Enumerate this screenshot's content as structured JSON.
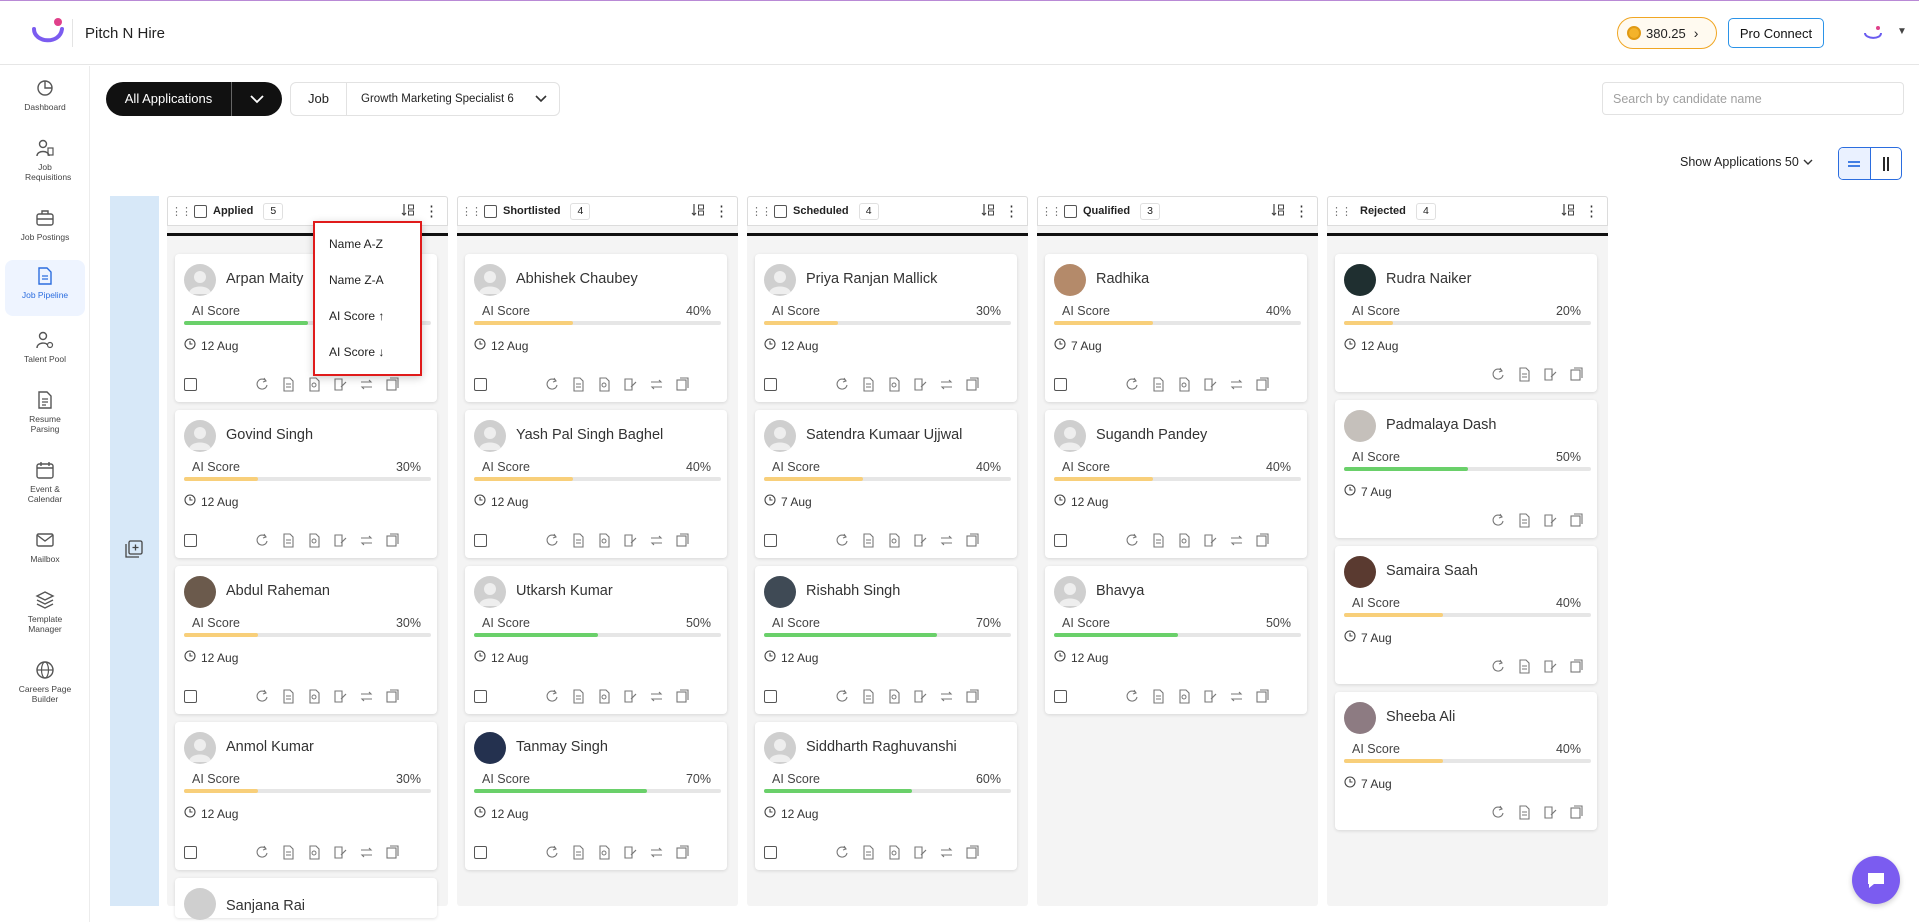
{
  "header": {
    "app_title": "Pitch N Hire",
    "coins": "380.25",
    "pro_connect": "Pro Connect"
  },
  "sidebar": {
    "items": [
      {
        "label": "Dashboard"
      },
      {
        "label": "Job Requisitions"
      },
      {
        "label": "Job Postings"
      },
      {
        "label": "Job Pipeline"
      },
      {
        "label": "Talent Pool"
      },
      {
        "label": "Resume Parsing"
      },
      {
        "label": "Event & Calendar"
      },
      {
        "label": "Mailbox"
      },
      {
        "label": "Template Manager"
      },
      {
        "label": "Careers Page Builder"
      }
    ]
  },
  "toolbar": {
    "all_applications": "All Applications",
    "job_label": "Job",
    "job_value": "Growth Marketing Specialist 6",
    "search_placeholder": "Search by candidate name",
    "show_applications": "Show Applications 50"
  },
  "columns": [
    {
      "title": "Applied",
      "count": "5"
    },
    {
      "title": "Shortlisted",
      "count": "4"
    },
    {
      "title": "Scheduled",
      "count": "4"
    },
    {
      "title": "Qualified",
      "count": "3"
    },
    {
      "title": "Rejected",
      "count": "4"
    }
  ],
  "score_label": "AI Score",
  "sort_menu": [
    "Name A-Z",
    "Name Z-A",
    "AI Score ↑",
    "AI Score ↓"
  ],
  "cards": {
    "applied": [
      {
        "name": "Arpan Maity",
        "score": "",
        "pct": 50,
        "date": "12 Aug"
      },
      {
        "name": "Govind Singh",
        "score": "30%",
        "pct": 30,
        "date": "12 Aug"
      },
      {
        "name": "Abdul Raheman",
        "score": "30%",
        "pct": 30,
        "date": "12 Aug"
      },
      {
        "name": "Anmol Kumar",
        "score": "30%",
        "pct": 30,
        "date": "12 Aug"
      }
    ],
    "applied_partial": "Sanjana Rai",
    "shortlisted": [
      {
        "name": "Abhishek Chaubey",
        "score": "40%",
        "pct": 40,
        "date": "12 Aug"
      },
      {
        "name": "Yash Pal Singh Baghel",
        "score": "40%",
        "pct": 40,
        "date": "12 Aug"
      },
      {
        "name": "Utkarsh Kumar",
        "score": "50%",
        "pct": 50,
        "date": "12 Aug"
      },
      {
        "name": "Tanmay Singh",
        "score": "70%",
        "pct": 70,
        "date": "12 Aug"
      }
    ],
    "scheduled": [
      {
        "name": "Priya Ranjan Mallick",
        "score": "30%",
        "pct": 30,
        "date": "12 Aug"
      },
      {
        "name": "Satendra Kumaar Ujjwal",
        "score": "40%",
        "pct": 40,
        "date": "7 Aug"
      },
      {
        "name": "Rishabh Singh",
        "score": "70%",
        "pct": 70,
        "date": "12 Aug"
      },
      {
        "name": "Siddharth Raghuvanshi",
        "score": "60%",
        "pct": 60,
        "date": "12 Aug"
      }
    ],
    "qualified": [
      {
        "name": "Radhika",
        "score": "40%",
        "pct": 40,
        "date": "7 Aug"
      },
      {
        "name": "Sugandh Pandey",
        "score": "40%",
        "pct": 40,
        "date": "12 Aug"
      },
      {
        "name": "Bhavya",
        "score": "50%",
        "pct": 50,
        "date": "12 Aug"
      }
    ],
    "rejected": [
      {
        "name": "Rudra Naiker",
        "score": "20%",
        "pct": 20,
        "date": "12 Aug"
      },
      {
        "name": "Padmalaya Dash",
        "score": "50%",
        "pct": 50,
        "date": "7 Aug"
      },
      {
        "name": "Samaira Saah",
        "score": "40%",
        "pct": 40,
        "date": "7 Aug"
      },
      {
        "name": "Sheeba Ali",
        "score": "40%",
        "pct": 40,
        "date": "7 Aug"
      }
    ]
  },
  "colors": {
    "score_low": "#f8cf7a",
    "score_high": "#6ad06a",
    "accent": "#2b6ddf",
    "highlight": "#e01b1b"
  }
}
